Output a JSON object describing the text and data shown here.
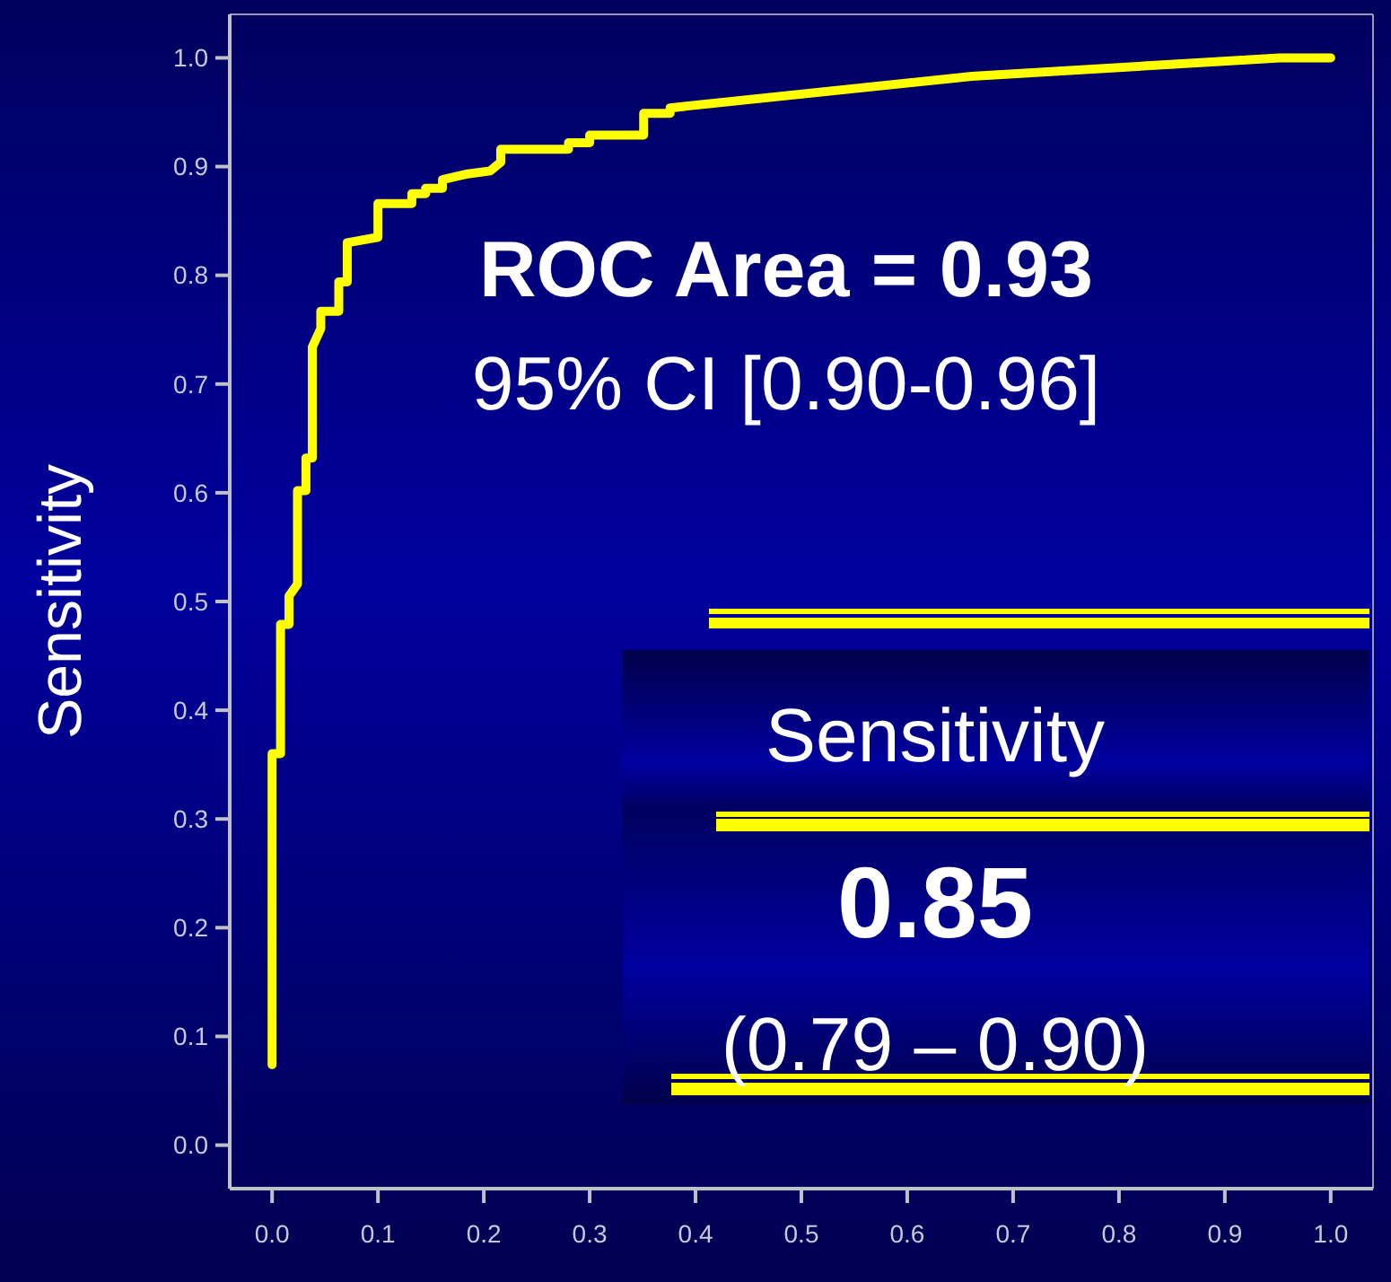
{
  "chart_data": {
    "type": "line",
    "ylabel": "Sensitivity",
    "x": [
      0,
      0,
      0.008,
      0.008,
      0.016,
      0.016,
      0.024,
      0.024,
      0.032,
      0.032,
      0.038,
      0.038,
      0.046,
      0.046,
      0.063,
      0.063,
      0.071,
      0.071,
      0.1,
      0.1,
      0.132,
      0.132,
      0.145,
      0.145,
      0.161,
      0.161,
      0.183,
      0.206,
      0.216,
      0.216,
      0.28,
      0.28,
      0.3,
      0.3,
      0.351,
      0.351,
      0.376,
      0.376,
      0.661,
      0.952,
      1.0
    ],
    "series": [
      {
        "color": "#ffff00",
        "values": [
          0.074,
          0.36,
          0.36,
          0.479,
          0.479,
          0.505,
          0.516,
          0.602,
          0.602,
          0.632,
          0.632,
          0.734,
          0.751,
          0.767,
          0.767,
          0.794,
          0.794,
          0.83,
          0.835,
          0.866,
          0.866,
          0.875,
          0.875,
          0.88,
          0.88,
          0.888,
          0.893,
          0.896,
          0.904,
          0.916,
          0.916,
          0.922,
          0.922,
          0.929,
          0.929,
          0.949,
          0.949,
          0.954,
          0.983,
          1.0,
          1.0
        ]
      }
    ],
    "xlim": [
      -0.04,
      1.04
    ],
    "ylim": [
      -0.04,
      1.04
    ],
    "xticks": [
      {
        "value": 0,
        "label": "0.0"
      },
      0.1,
      0.2,
      0.3,
      0.4,
      0.5,
      0.6,
      0.7,
      0.8,
      0.9,
      {
        "value": 1,
        "label": "1.0"
      }
    ],
    "yticks": [
      {
        "value": 0,
        "label": "0.0"
      },
      0.1,
      0.2,
      0.3,
      0.4,
      0.5,
      0.6,
      0.7,
      0.8,
      0.9,
      {
        "value": 1,
        "label": "1.0"
      }
    ],
    "grid": false,
    "marker": "none",
    "line_style": "solid",
    "annotations": [
      "ROC Area = 0.93",
      "95% CI [0.90-0.96]",
      "Sensitivity",
      "0.85",
      "(0.79 – 0.90)"
    ]
  }
}
